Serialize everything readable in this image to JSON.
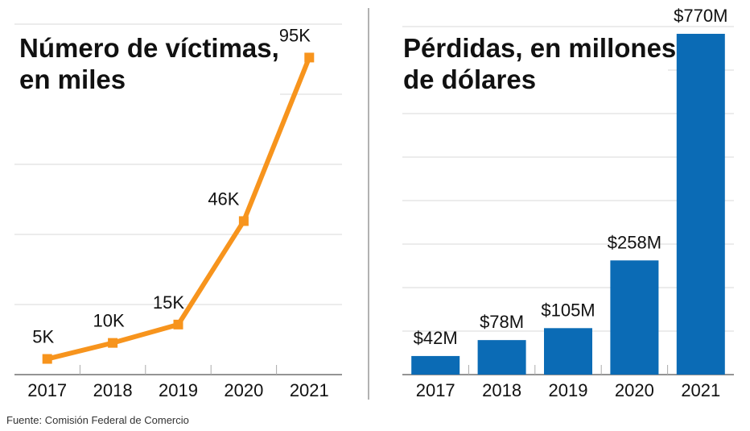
{
  "chart_data": [
    {
      "type": "line",
      "title_lines": [
        "Número de víctimas,",
        "en miles"
      ],
      "categories": [
        "2017",
        "2018",
        "2019",
        "2020",
        "2021"
      ],
      "values": [
        4.7,
        9.5,
        15,
        46,
        95
      ],
      "data_labels": [
        "5K",
        "10K",
        "15K",
        "46K",
        "95K"
      ],
      "ylim": [
        0,
        105
      ],
      "grid": true,
      "color": "#f7941d"
    },
    {
      "type": "bar",
      "title_lines": [
        "Pérdidas, en millones",
        "de dólares"
      ],
      "categories": [
        "2017",
        "2018",
        "2019",
        "2020",
        "2021"
      ],
      "values": [
        42,
        78,
        105,
        258,
        770
      ],
      "data_labels": [
        "$42M",
        "$78M",
        "$105M",
        "$258M",
        "$770M"
      ],
      "ylim": [
        0,
        810
      ],
      "grid": true,
      "color": "#0b6bb5"
    }
  ],
  "source": "Fuente: Comisión Federal de Comercio"
}
